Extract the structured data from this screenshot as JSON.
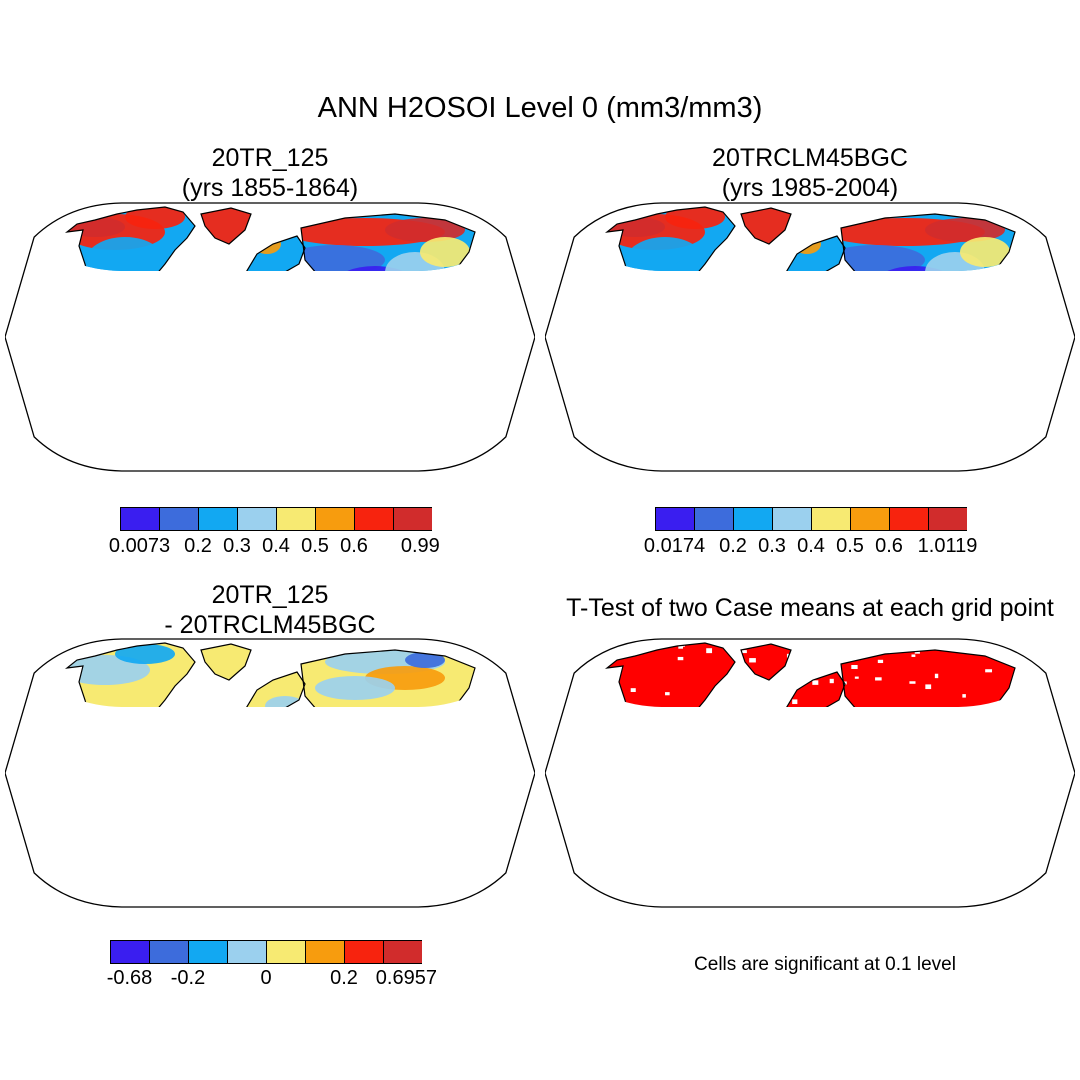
{
  "title": "ANN H2OSOI Level 0 (mm3/mm3)",
  "panels": [
    {
      "id": "case1",
      "title_line1": "20TR_125",
      "title_line2": "(yrs 1855-1864)",
      "colorbar": {
        "colors": [
          "#3a1ef0",
          "#3d6cdc",
          "#12a8f2",
          "#9bd0ee",
          "#f7ea72",
          "#f79c0e",
          "#f7230e",
          "#d12c2c"
        ],
        "labels": [
          "0.0073",
          "0.2",
          "0.3",
          "0.4",
          "0.5",
          "0.6",
          "0.99"
        ]
      }
    },
    {
      "id": "case2",
      "title_line1": "20TRCLM45BGC",
      "title_line2": "(yrs 1985-2004)",
      "colorbar": {
        "colors": [
          "#3a1ef0",
          "#3d6cdc",
          "#12a8f2",
          "#9bd0ee",
          "#f7ea72",
          "#f79c0e",
          "#f7230e",
          "#d12c2c"
        ],
        "labels": [
          "0.0174",
          "0.2",
          "0.3",
          "0.4",
          "0.5",
          "0.6",
          "1.0119"
        ]
      }
    },
    {
      "id": "diff",
      "title_line1": "20TR_125",
      "title_line2": "- 20TRCLM45BGC",
      "colorbar": {
        "colors": [
          "#3a1ef0",
          "#3d6cdc",
          "#12a8f2",
          "#9bd0ee",
          "#f7ea72",
          "#f79c0e",
          "#f7230e",
          "#d12c2c"
        ],
        "labels": [
          "-0.68",
          "-0.2",
          "0",
          "0.2",
          "0.6957"
        ]
      }
    },
    {
      "id": "ttest",
      "title_line1": "T-Test of two Case means at each grid point",
      "note": "Cells are significant at 0.1 level",
      "signif_color": "#ff0000"
    }
  ]
}
